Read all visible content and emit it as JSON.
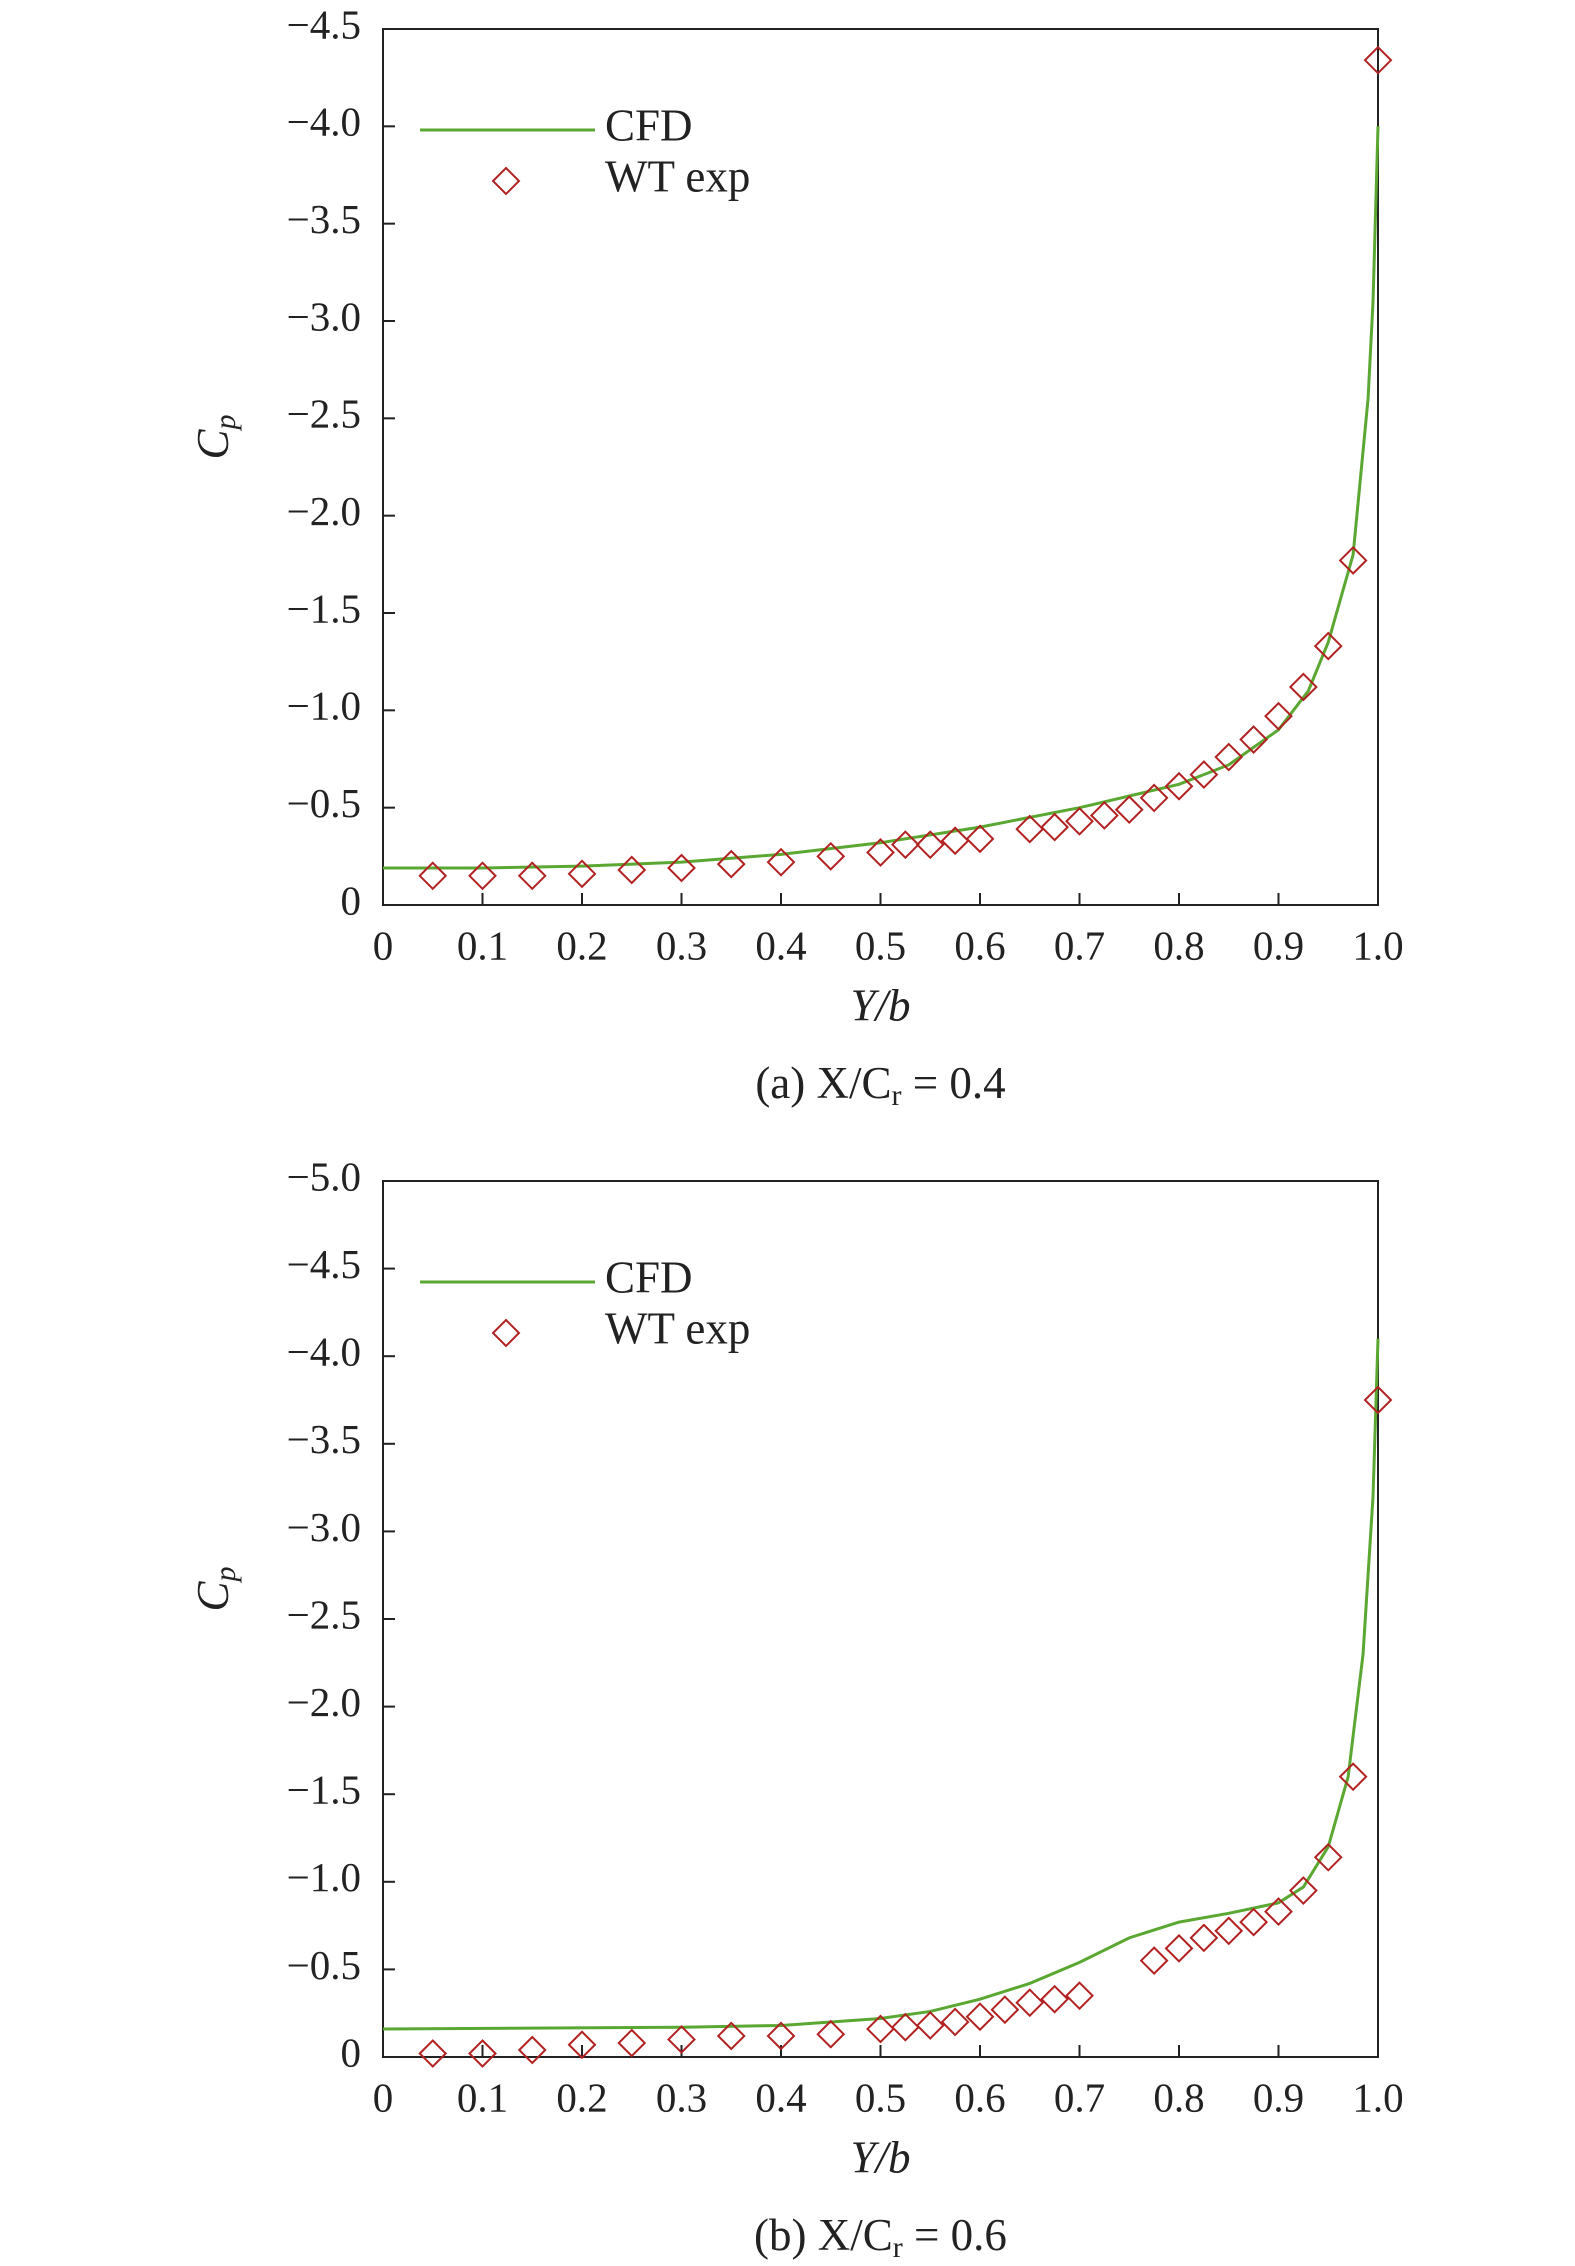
{
  "chart_data": [
    {
      "type": "line",
      "ylabel": {
        "main": "C",
        "sub": "p"
      },
      "xlabel": "Y/b",
      "caption": {
        "text": "(a) X/C",
        "sub": "r",
        "rest": " = 0.4"
      },
      "xlim": [
        0,
        1.0
      ],
      "ylim": [
        0,
        -4.5
      ],
      "xticks": [
        0,
        0.1,
        0.2,
        0.3,
        0.4,
        0.5,
        0.6,
        0.7,
        0.8,
        0.9,
        {
          "value": 1.0,
          "label": "1.0"
        }
      ],
      "yticks": [
        {
          "value": -4.5,
          "label": "−4.5"
        },
        {
          "value": -4.0,
          "label": "−4.0"
        },
        {
          "value": -3.5,
          "label": "−3.5"
        },
        {
          "value": -3.0,
          "label": "−3.0"
        },
        {
          "value": -2.5,
          "label": "−2.5"
        },
        {
          "value": -2.0,
          "label": "−2.0"
        },
        {
          "value": -1.5,
          "label": "−1.5"
        },
        {
          "value": -1.0,
          "label": "−1.0"
        },
        {
          "value": -0.5,
          "label": "−0.5"
        },
        0
      ],
      "series": [
        {
          "name": "CFD",
          "color": "#5aa832",
          "style": "line",
          "x": [
            0,
            0.1,
            0.2,
            0.3,
            0.4,
            0.5,
            0.6,
            0.7,
            0.8,
            0.85,
            0.9,
            0.93,
            0.95,
            0.975,
            0.99,
            0.995,
            1.0
          ],
          "values": [
            -0.19,
            -0.19,
            -0.2,
            -0.22,
            -0.26,
            -0.32,
            -0.4,
            -0.5,
            -0.62,
            -0.72,
            -0.9,
            -1.1,
            -1.35,
            -1.8,
            -2.6,
            -3.1,
            -4.0
          ]
        },
        {
          "name": "WT exp",
          "color": "#b22222",
          "style": "marker",
          "x": [
            0.05,
            0.1,
            0.15,
            0.2,
            0.25,
            0.3,
            0.35,
            0.4,
            0.45,
            0.5,
            0.525,
            0.55,
            0.575,
            0.6,
            0.65,
            0.675,
            0.7,
            0.725,
            0.75,
            0.775,
            0.8,
            0.825,
            0.85,
            0.875,
            0.9,
            0.925,
            0.95,
            0.975,
            1.0
          ],
          "values": [
            -0.15,
            -0.15,
            -0.15,
            -0.16,
            -0.18,
            -0.19,
            -0.21,
            -0.22,
            -0.25,
            -0.27,
            -0.31,
            -0.31,
            -0.33,
            -0.34,
            -0.39,
            -0.4,
            -0.43,
            -0.46,
            -0.49,
            -0.55,
            -0.61,
            -0.67,
            -0.76,
            -0.85,
            -0.97,
            -1.12,
            -1.33,
            -1.77,
            -4.34
          ]
        }
      ]
    },
    {
      "type": "line",
      "ylabel": {
        "main": "C",
        "sub": "p"
      },
      "xlabel": "Y/b",
      "caption": {
        "text": "(b) X/C",
        "sub": "r",
        "rest": " = 0.6"
      },
      "xlim": [
        0,
        1.0
      ],
      "ylim": [
        0,
        -5.0
      ],
      "xticks": [
        0,
        0.1,
        0.2,
        0.3,
        0.4,
        0.5,
        0.6,
        0.7,
        0.8,
        0.9,
        {
          "value": 1.0,
          "label": "1.0"
        }
      ],
      "yticks": [
        {
          "value": -5.0,
          "label": "−5.0"
        },
        {
          "value": -4.5,
          "label": "−4.5"
        },
        {
          "value": -4.0,
          "label": "−4.0"
        },
        {
          "value": -3.5,
          "label": "−3.5"
        },
        {
          "value": -3.0,
          "label": "−3.0"
        },
        {
          "value": -2.5,
          "label": "−2.5"
        },
        {
          "value": -2.0,
          "label": "−2.0"
        },
        {
          "value": -1.5,
          "label": "−1.5"
        },
        {
          "value": -1.0,
          "label": "−1.0"
        },
        {
          "value": -0.5,
          "label": "−0.5"
        },
        0
      ],
      "series": [
        {
          "name": "CFD",
          "color": "#5aa832",
          "style": "line",
          "x": [
            0,
            0.3,
            0.4,
            0.5,
            0.55,
            0.6,
            0.65,
            0.7,
            0.75,
            0.8,
            0.85,
            0.9,
            0.925,
            0.95,
            0.97,
            0.985,
            0.995,
            1.0
          ],
          "values": [
            -0.16,
            -0.17,
            -0.18,
            -0.22,
            -0.26,
            -0.33,
            -0.42,
            -0.54,
            -0.68,
            -0.77,
            -0.82,
            -0.88,
            -0.97,
            -1.2,
            -1.6,
            -2.3,
            -3.2,
            -4.1
          ]
        },
        {
          "name": "WT exp",
          "color": "#b22222",
          "style": "marker",
          "x": [
            0.05,
            0.1,
            0.15,
            0.2,
            0.25,
            0.3,
            0.35,
            0.4,
            0.45,
            0.5,
            0.525,
            0.55,
            0.575,
            0.6,
            0.625,
            0.65,
            0.675,
            0.7,
            0.775,
            0.8,
            0.825,
            0.85,
            0.875,
            0.9,
            0.925,
            0.95,
            0.975,
            1.0
          ],
          "values": [
            -0.02,
            -0.02,
            -0.04,
            -0.07,
            -0.08,
            -0.1,
            -0.12,
            -0.12,
            -0.13,
            -0.16,
            -0.17,
            -0.18,
            -0.2,
            -0.23,
            -0.27,
            -0.31,
            -0.33,
            -0.35,
            -0.55,
            -0.62,
            -0.68,
            -0.72,
            -0.77,
            -0.83,
            -0.95,
            -1.14,
            -1.6,
            -3.75
          ]
        }
      ]
    }
  ]
}
